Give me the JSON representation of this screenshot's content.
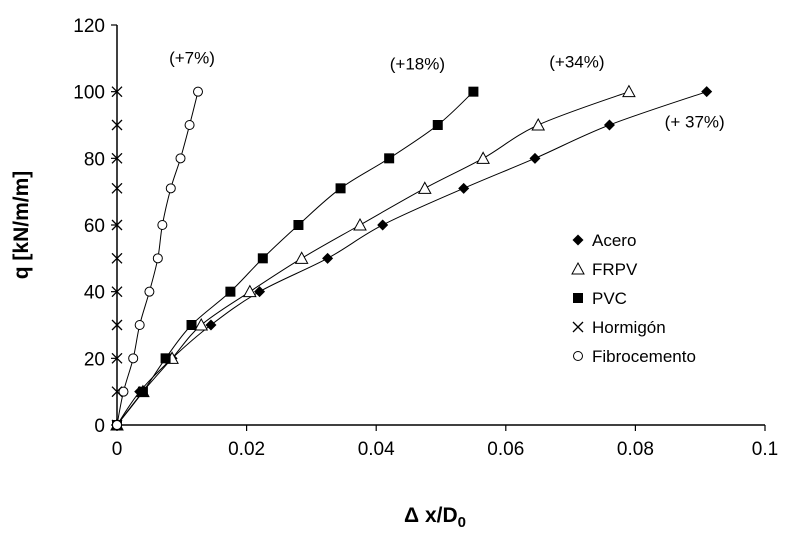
{
  "chart_data": {
    "type": "line",
    "title": "",
    "xlabel_main": "Δ x/D",
    "xlabel_sub": "0",
    "ylabel": "q [kN/m/m]",
    "xlim": [
      0,
      0.1
    ],
    "ylim": [
      0,
      120
    ],
    "x_ticks": [
      "0",
      "0.02",
      "0.04",
      "0.06",
      "0.08",
      "0.1"
    ],
    "y_ticks": [
      "0",
      "20",
      "40",
      "60",
      "80",
      "100",
      "120"
    ],
    "x_tick_values": [
      0,
      0.02,
      0.04,
      0.06,
      0.08,
      0.1
    ],
    "y_tick_values": [
      0,
      20,
      40,
      60,
      80,
      100,
      120
    ],
    "grid": false,
    "legend_position": "right",
    "series": [
      {
        "name": "Acero",
        "marker": "diamond",
        "points": [
          [
            0,
            0
          ],
          [
            0.0035,
            10
          ],
          [
            0.0085,
            20
          ],
          [
            0.0145,
            30
          ],
          [
            0.022,
            40
          ],
          [
            0.0325,
            50
          ],
          [
            0.041,
            60
          ],
          [
            0.0535,
            71
          ],
          [
            0.0645,
            80
          ],
          [
            0.076,
            90
          ],
          [
            0.091,
            100
          ]
        ]
      },
      {
        "name": "FRPV",
        "marker": "triangle-open",
        "points": [
          [
            0,
            0
          ],
          [
            0.004,
            10
          ],
          [
            0.0085,
            20
          ],
          [
            0.013,
            30
          ],
          [
            0.0205,
            40
          ],
          [
            0.0285,
            50
          ],
          [
            0.0375,
            60
          ],
          [
            0.0475,
            71
          ],
          [
            0.0565,
            80
          ],
          [
            0.065,
            90
          ],
          [
            0.079,
            100
          ]
        ]
      },
      {
        "name": "PVC",
        "marker": "square",
        "points": [
          [
            0,
            0
          ],
          [
            0.004,
            10
          ],
          [
            0.0075,
            20
          ],
          [
            0.0115,
            30
          ],
          [
            0.0175,
            40
          ],
          [
            0.0225,
            50
          ],
          [
            0.028,
            60
          ],
          [
            0.0345,
            71
          ],
          [
            0.042,
            80
          ],
          [
            0.0495,
            90
          ],
          [
            0.055,
            100
          ]
        ]
      },
      {
        "name": "Hormigón",
        "marker": "x",
        "points": [
          [
            0,
            0
          ],
          [
            0,
            10
          ],
          [
            0,
            20
          ],
          [
            0,
            30
          ],
          [
            0,
            40
          ],
          [
            0,
            50
          ],
          [
            0,
            60
          ],
          [
            0,
            71
          ],
          [
            0,
            80
          ],
          [
            0,
            90
          ],
          [
            0,
            100
          ]
        ]
      },
      {
        "name": "Fibrocemento",
        "marker": "circle-open",
        "points": [
          [
            0,
            0
          ],
          [
            0.001,
            10
          ],
          [
            0.0025,
            20
          ],
          [
            0.0035,
            30
          ],
          [
            0.005,
            40
          ],
          [
            0.0063,
            50
          ],
          [
            0.007,
            60
          ],
          [
            0.0083,
            71
          ],
          [
            0.0098,
            80
          ],
          [
            0.0112,
            90
          ],
          [
            0.0125,
            100
          ]
        ]
      }
    ],
    "annotations": [
      {
        "text": "(+7%)",
        "x": 0.0125,
        "y": 100
      },
      {
        "text": "(+18%)",
        "x": 0.055,
        "y": 100
      },
      {
        "text": "(+34%)",
        "x": 0.079,
        "y": 100
      },
      {
        "text": "(+ 37%)",
        "x": 0.091,
        "y": 100
      }
    ]
  }
}
